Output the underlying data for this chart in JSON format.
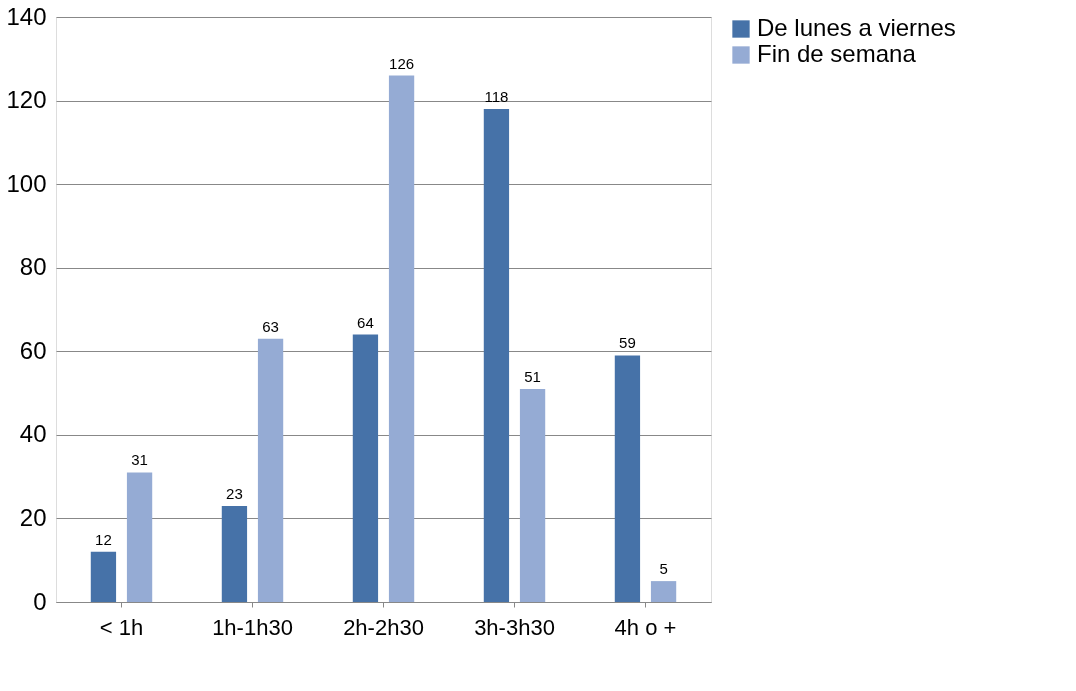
{
  "chart_data": {
    "type": "bar",
    "categories": [
      "< 1h",
      "1h-1h30",
      "2h-2h30",
      "3h-3h30",
      "4h o +"
    ],
    "series": [
      {
        "name": "De lunes a viernes",
        "color": "#4672a8",
        "values": [
          12,
          23,
          64,
          118,
          59
        ]
      },
      {
        "name": "Fin de semana",
        "color": "#95abd4",
        "values": [
          31,
          63,
          126,
          51,
          5
        ]
      }
    ],
    "ylim": [
      0,
      140
    ],
    "yticks": [
      0,
      20,
      40,
      60,
      80,
      100,
      120,
      140
    ],
    "grid": "y",
    "legend": "right",
    "data_labels": true
  }
}
